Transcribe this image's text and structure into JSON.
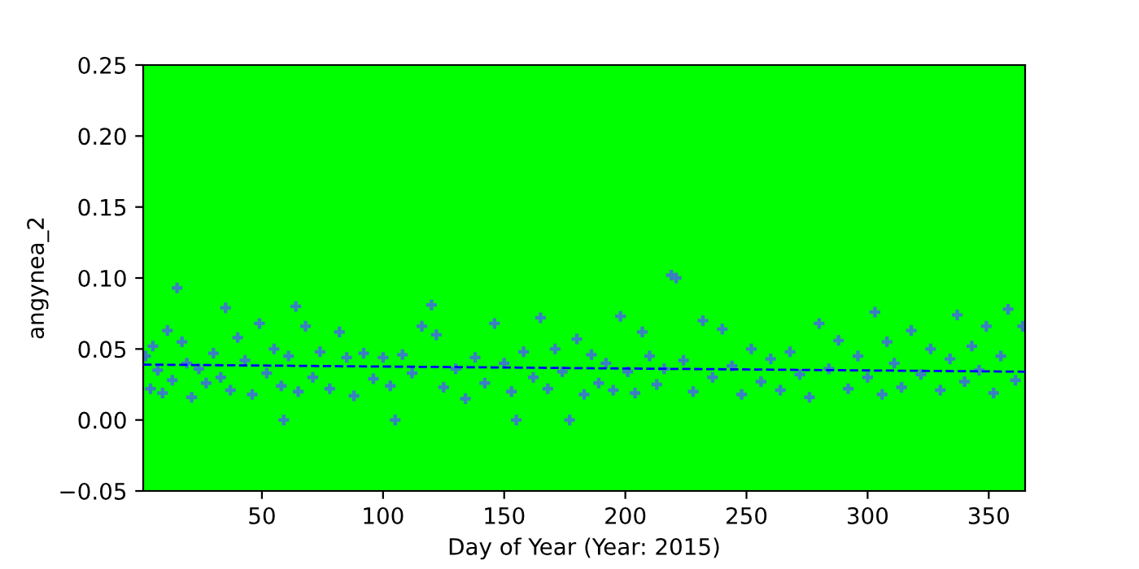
{
  "chart_data": {
    "type": "scatter",
    "xlabel": "Day of Year (Year: 2015)",
    "ylabel": "angynea_2",
    "xlim": [
      1,
      365
    ],
    "ylim": [
      -0.05,
      0.25
    ],
    "xticks": [
      50,
      100,
      150,
      200,
      250,
      300,
      350
    ],
    "yticks": [
      {
        "value": -0.05,
        "label": "−0.05"
      },
      {
        "value": 0,
        "label": "0.00"
      },
      {
        "value": 0.05,
        "label": "0.05"
      },
      {
        "value": 0.1,
        "label": "0.10"
      },
      {
        "value": 0.15,
        "label": "0.15"
      },
      {
        "value": 0.2,
        "label": "0.20"
      },
      {
        "value": 0.25,
        "label": "0.25"
      }
    ],
    "marker": "cross",
    "grid": false,
    "series": [
      {
        "color": "#3a7fc2",
        "x": [
          2,
          4,
          5,
          7,
          9,
          11,
          13,
          15,
          17,
          19,
          21,
          24,
          27,
          30,
          33,
          35,
          37,
          40,
          43,
          46,
          49,
          52,
          55,
          58,
          59,
          61,
          64,
          65,
          68,
          71,
          74,
          78,
          82,
          85,
          88,
          92,
          96,
          100,
          103,
          105,
          108,
          112,
          116,
          120,
          122,
          125,
          130,
          134,
          138,
          142,
          146,
          150,
          153,
          155,
          158,
          162,
          165,
          168,
          171,
          174,
          177,
          180,
          183,
          186,
          189,
          192,
          195,
          198,
          201,
          204,
          207,
          210,
          213,
          216,
          219,
          221,
          224,
          228,
          232,
          236,
          240,
          244,
          248,
          252,
          256,
          260,
          264,
          268,
          272,
          276,
          280,
          284,
          288,
          292,
          296,
          300,
          303,
          306,
          308,
          311,
          314,
          318,
          322,
          326,
          330,
          334,
          337,
          340,
          343,
          346,
          349,
          352,
          355,
          358,
          361,
          364
        ],
        "values": [
          0.045,
          0.022,
          0.052,
          0.035,
          0.019,
          0.063,
          0.028,
          0.093,
          0.055,
          0.04,
          0.016,
          0.036,
          0.026,
          0.047,
          0.03,
          0.079,
          0.021,
          0.058,
          0.042,
          0.018,
          0.068,
          0.033,
          0.05,
          0.024,
          0.0,
          0.045,
          0.08,
          0.02,
          0.066,
          0.03,
          0.048,
          0.022,
          0.062,
          0.044,
          0.017,
          0.047,
          0.029,
          0.044,
          0.024,
          0.0,
          0.046,
          0.033,
          0.066,
          0.081,
          0.06,
          0.023,
          0.036,
          0.015,
          0.044,
          0.026,
          0.068,
          0.04,
          0.02,
          0.0,
          0.048,
          0.03,
          0.072,
          0.022,
          0.05,
          0.034,
          0.0,
          0.057,
          0.018,
          0.046,
          0.026,
          0.04,
          0.021,
          0.073,
          0.034,
          0.019,
          0.062,
          0.045,
          0.025,
          0.036,
          0.102,
          0.1,
          0.042,
          0.02,
          0.07,
          0.03,
          0.064,
          0.038,
          0.018,
          0.05,
          0.027,
          0.043,
          0.021,
          0.048,
          0.032,
          0.016,
          0.068,
          0.036,
          0.056,
          0.022,
          0.045,
          0.03,
          0.076,
          0.018,
          0.055,
          0.04,
          0.023,
          0.063,
          0.032,
          0.05,
          0.021,
          0.043,
          0.074,
          0.027,
          0.052,
          0.035,
          0.066,
          0.019,
          0.045,
          0.078,
          0.028,
          0.066
        ]
      },
      {
        "type": "line",
        "color": "#0000ff",
        "line_style": "dashed",
        "marker": "none",
        "x": [
          1,
          365
        ],
        "values": [
          0.039,
          0.034
        ]
      }
    ]
  }
}
